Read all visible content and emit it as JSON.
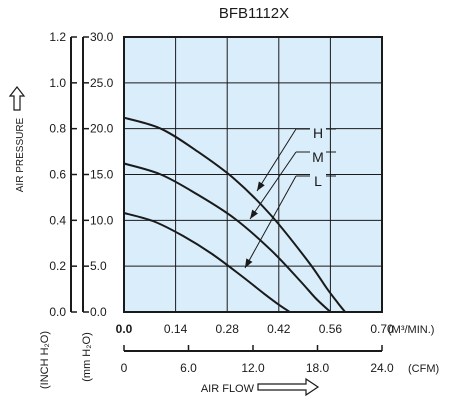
{
  "chart_data": {
    "type": "line",
    "title": "BFB1112X",
    "x_axis_primary": {
      "range": [
        0.0,
        0.7
      ],
      "ticks": [
        "0.0",
        "0.14",
        "0.28",
        "0.42",
        "0.56",
        "0.70"
      ],
      "unit": "(M³/MIN.)"
    },
    "x_axis_secondary": {
      "range": [
        0,
        24.0
      ],
      "ticks": [
        "0",
        "6.0",
        "12.0",
        "18.0",
        "24.0"
      ],
      "unit": "(CFM)",
      "label": "AIR FLOW"
    },
    "y_axis_mmh2o": {
      "range": [
        0.0,
        30.0
      ],
      "ticks": [
        "0.0",
        "5.0",
        "10.0",
        "15.0",
        "20.0",
        "25.0",
        "30.0"
      ],
      "unit": "(mm H₂O)"
    },
    "y_axis_inchh2o": {
      "range": [
        0.0,
        1.2
      ],
      "ticks": [
        "0.0",
        "0.2",
        "0.4",
        "0.6",
        "0.8",
        "1.0",
        "1.2"
      ],
      "unit": "(INCH H₂O)",
      "label": "AIR PRESSURE"
    },
    "grid": true,
    "series": [
      {
        "name": "H",
        "x": [
          0.0,
          0.1,
          0.2,
          0.3,
          0.4,
          0.5,
          0.55,
          0.58,
          0.6
        ],
        "y": [
          21.2,
          20.0,
          17.5,
          14.5,
          10.5,
          5.5,
          2.6,
          1.0,
          0.0
        ]
      },
      {
        "name": "M",
        "x": [
          0.0,
          0.1,
          0.2,
          0.3,
          0.4,
          0.48,
          0.52,
          0.56
        ],
        "y": [
          16.2,
          15.0,
          12.8,
          10.2,
          6.7,
          3.3,
          1.5,
          0.0
        ]
      },
      {
        "name": "L",
        "x": [
          0.0,
          0.08,
          0.16,
          0.24,
          0.32,
          0.38,
          0.42,
          0.45
        ],
        "y": [
          10.8,
          9.9,
          8.3,
          6.3,
          3.9,
          2.0,
          0.8,
          0.0
        ]
      }
    ]
  }
}
